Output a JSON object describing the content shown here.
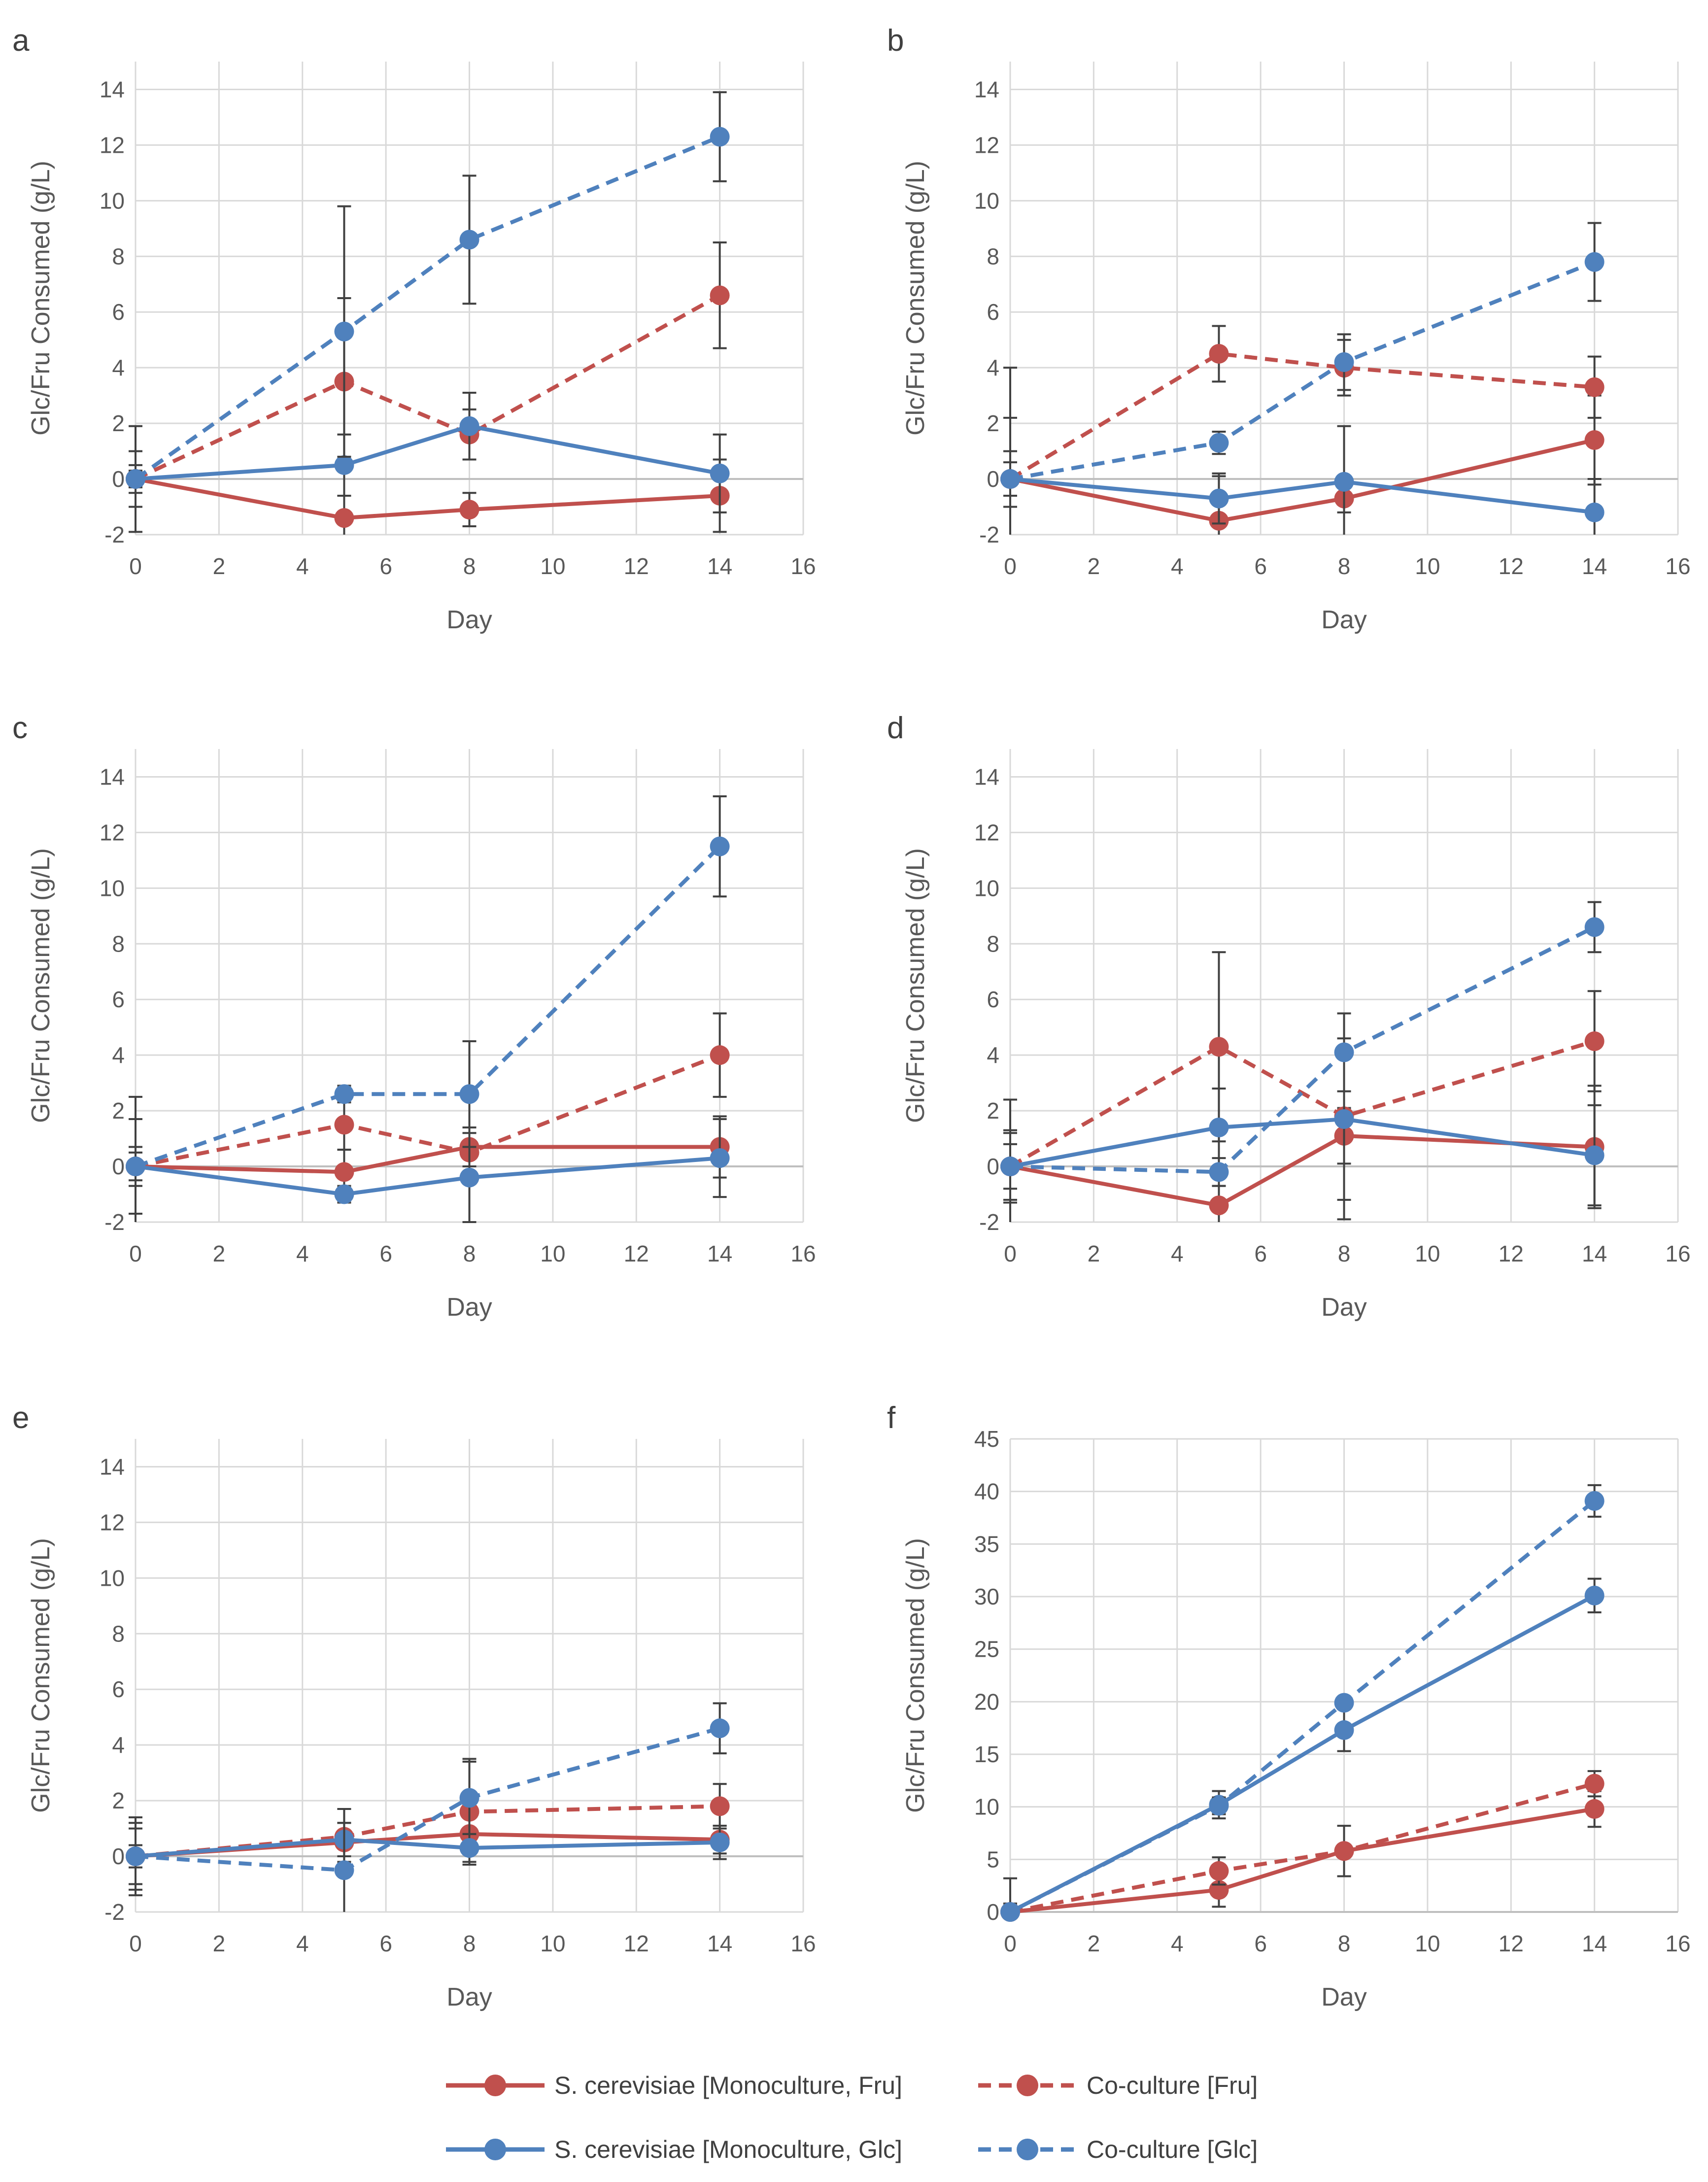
{
  "legend": {
    "items": [
      {
        "label": "S. cerevisiae [Monoculture, Fru]",
        "color": "#c0504d",
        "dash": false
      },
      {
        "label": "Co-culture [Fru]",
        "color": "#c0504d",
        "dash": true
      },
      {
        "label": "S. cerevisiae [Monoculture, Glc]",
        "color": "#4f81bd",
        "dash": false
      },
      {
        "label": "Co-culture [Glc]",
        "color": "#4f81bd",
        "dash": true
      }
    ]
  },
  "colors": {
    "fru": "#c0504d",
    "glc": "#4f81bd",
    "grid": "#d9d9d9",
    "axis": "#bfbfbf",
    "text": "#595959"
  },
  "chart_data": [
    {
      "panel_label": "a",
      "type": "line",
      "xlabel": "Day",
      "ylabel": "Glc/Fru Consumed (g/L)",
      "xlim": [
        0,
        16
      ],
      "xticks": [
        0,
        2,
        4,
        6,
        8,
        10,
        12,
        14,
        16
      ],
      "ylim": [
        -2,
        15
      ],
      "yticks": [
        -2,
        0,
        2,
        4,
        6,
        8,
        10,
        12,
        14
      ],
      "x": [
        0,
        5,
        8,
        14
      ],
      "series": [
        {
          "name": "S. cerevisiae [Monoculture, Fru]",
          "values": [
            0,
            -1.4,
            -1.1,
            -0.6
          ],
          "errors": [
            1.9,
            0.8,
            0.6,
            1.3
          ]
        },
        {
          "name": "Co-culture [Fru]",
          "values": [
            0,
            3.5,
            1.6,
            6.6
          ],
          "errors": [
            1.0,
            3.0,
            0.9,
            1.9
          ]
        },
        {
          "name": "S. cerevisiae [Monoculture, Glc]",
          "values": [
            0,
            0.5,
            1.9,
            0.2
          ],
          "errors": [
            0.5,
            1.1,
            1.2,
            1.4
          ]
        },
        {
          "name": "Co-culture [Glc]",
          "values": [
            0,
            5.3,
            8.6,
            12.3
          ],
          "errors": [
            0.3,
            4.5,
            2.3,
            1.6
          ]
        }
      ]
    },
    {
      "panel_label": "b",
      "type": "line",
      "xlabel": "Day",
      "ylabel": "Glc/Fru Consumed (g/L)",
      "xlim": [
        0,
        16
      ],
      "xticks": [
        0,
        2,
        4,
        6,
        8,
        10,
        12,
        14,
        16
      ],
      "ylim": [
        -2,
        15
      ],
      "yticks": [
        -2,
        0,
        2,
        4,
        6,
        8,
        10,
        12,
        14
      ],
      "x": [
        0,
        5,
        8,
        14
      ],
      "series": [
        {
          "name": "S. cerevisiae [Monoculture, Fru]",
          "values": [
            0,
            -1.5,
            -0.7,
            1.4
          ],
          "errors": [
            0.6,
            1.6,
            0.5,
            1.6
          ]
        },
        {
          "name": "Co-culture [Fru]",
          "values": [
            0,
            4.5,
            4.0,
            3.3
          ],
          "errors": [
            4.0,
            1.0,
            1.0,
            1.1
          ]
        },
        {
          "name": "S. cerevisiae [Monoculture, Glc]",
          "values": [
            0,
            -0.7,
            -0.1,
            -1.2
          ],
          "errors": [
            1.0,
            0.9,
            2.0,
            1.2
          ]
        },
        {
          "name": "Co-culture [Glc]",
          "values": [
            0,
            1.3,
            4.2,
            7.8
          ],
          "errors": [
            2.2,
            0.4,
            1.0,
            1.4
          ]
        }
      ]
    },
    {
      "panel_label": "c",
      "type": "line",
      "xlabel": "Day",
      "ylabel": "Glc/Fru Consumed (g/L)",
      "xlim": [
        0,
        16
      ],
      "xticks": [
        0,
        2,
        4,
        6,
        8,
        10,
        12,
        14,
        16
      ],
      "ylim": [
        -2,
        15
      ],
      "yticks": [
        -2,
        0,
        2,
        4,
        6,
        8,
        10,
        12,
        14
      ],
      "x": [
        0,
        5,
        8,
        14
      ],
      "series": [
        {
          "name": "S. cerevisiae [Monoculture, Fru]",
          "values": [
            0,
            -0.2,
            0.7,
            0.7
          ],
          "errors": [
            1.7,
            0.8,
            0.7,
            1.1
          ]
        },
        {
          "name": "Co-culture [Fru]",
          "values": [
            0,
            1.5,
            0.5,
            4.0
          ],
          "errors": [
            2.5,
            0.9,
            0.9,
            1.5
          ]
        },
        {
          "name": "S. cerevisiae [Monoculture, Glc]",
          "values": [
            0,
            -1.0,
            -0.4,
            0.3
          ],
          "errors": [
            0.7,
            0.3,
            1.6,
            1.4
          ]
        },
        {
          "name": "Co-culture [Glc]",
          "values": [
            0,
            2.6,
            2.6,
            11.5
          ],
          "errors": [
            0.5,
            0.3,
            1.9,
            1.8
          ]
        }
      ]
    },
    {
      "panel_label": "d",
      "type": "line",
      "xlabel": "Day",
      "ylabel": "Glc/Fru Consumed (g/L)",
      "xlim": [
        0,
        16
      ],
      "xticks": [
        0,
        2,
        4,
        6,
        8,
        10,
        12,
        14,
        16
      ],
      "ylim": [
        -2,
        15
      ],
      "yticks": [
        -2,
        0,
        2,
        4,
        6,
        8,
        10,
        12,
        14
      ],
      "x": [
        0,
        5,
        8,
        14
      ],
      "series": [
        {
          "name": "S. cerevisiae [Monoculture, Fru]",
          "values": [
            0,
            -1.4,
            1.1,
            0.7
          ],
          "errors": [
            1.3,
            0.7,
            1.0,
            2.2
          ]
        },
        {
          "name": "Co-culture [Fru]",
          "values": [
            0,
            4.3,
            1.8,
            4.5
          ],
          "errors": [
            2.4,
            3.4,
            3.7,
            1.8
          ]
        },
        {
          "name": "S. cerevisiae [Monoculture, Glc]",
          "values": [
            0,
            1.4,
            1.7,
            0.4
          ],
          "errors": [
            1.2,
            1.4,
            2.9,
            1.8
          ]
        },
        {
          "name": "Co-culture [Glc]",
          "values": [
            0,
            -0.2,
            4.1,
            8.6
          ],
          "errors": [
            0.8,
            0.5,
            1.4,
            0.9
          ]
        }
      ]
    },
    {
      "panel_label": "e",
      "type": "line",
      "xlabel": "Day",
      "ylabel": "Glc/Fru Consumed (g/L)",
      "xlim": [
        0,
        16
      ],
      "xticks": [
        0,
        2,
        4,
        6,
        8,
        10,
        12,
        14,
        16
      ],
      "ylim": [
        -2,
        15
      ],
      "yticks": [
        -2,
        0,
        2,
        4,
        6,
        8,
        10,
        12,
        14
      ],
      "x": [
        0,
        5,
        8,
        14
      ],
      "series": [
        {
          "name": "S. cerevisiae [Monoculture, Fru]",
          "values": [
            0,
            0.5,
            0.8,
            0.6
          ],
          "errors": [
            1.4,
            0.7,
            0.7,
            0.5
          ]
        },
        {
          "name": "Co-culture [Fru]",
          "values": [
            0,
            0.7,
            1.6,
            1.8
          ],
          "errors": [
            1.2,
            1.0,
            1.9,
            0.8
          ]
        },
        {
          "name": "S. cerevisiae [Monoculture, Glc]",
          "values": [
            0,
            0.6,
            0.3,
            0.5
          ],
          "errors": [
            1.0,
            0.6,
            0.5,
            0.6
          ]
        },
        {
          "name": "Co-culture [Glc]",
          "values": [
            0,
            -0.5,
            2.1,
            4.6
          ],
          "errors": [
            0.4,
            2.2,
            1.3,
            0.9
          ]
        }
      ]
    },
    {
      "panel_label": "f",
      "type": "line",
      "xlabel": "Day",
      "ylabel": "Glc/Fru Consumed (g/L)",
      "xlim": [
        0,
        16
      ],
      "xticks": [
        0,
        2,
        4,
        6,
        8,
        10,
        12,
        14,
        16
      ],
      "ylim": [
        0,
        45
      ],
      "yticks": [
        0,
        5,
        10,
        15,
        20,
        25,
        30,
        35,
        40,
        45
      ],
      "x": [
        0,
        5,
        8,
        14
      ],
      "series": [
        {
          "name": "S. cerevisiae [Monoculture, Fru]",
          "values": [
            0,
            2.1,
            5.8,
            9.8
          ],
          "errors": [
            0.8,
            1.6,
            2.4,
            1.7
          ]
        },
        {
          "name": "Co-culture [Fru]",
          "values": [
            0,
            3.9,
            5.8,
            12.2
          ],
          "errors": [
            3.2,
            1.3,
            0.6,
            1.2
          ]
        },
        {
          "name": "S. cerevisiae [Monoculture, Glc]",
          "values": [
            0,
            10.2,
            17.3,
            30.1
          ],
          "errors": [
            0.5,
            1.3,
            2.0,
            1.6
          ]
        },
        {
          "name": "Co-culture [Glc]",
          "values": [
            0,
            10.1,
            19.9,
            39.1
          ],
          "errors": [
            0.5,
            0.8,
            0.5,
            1.5
          ]
        }
      ]
    }
  ]
}
